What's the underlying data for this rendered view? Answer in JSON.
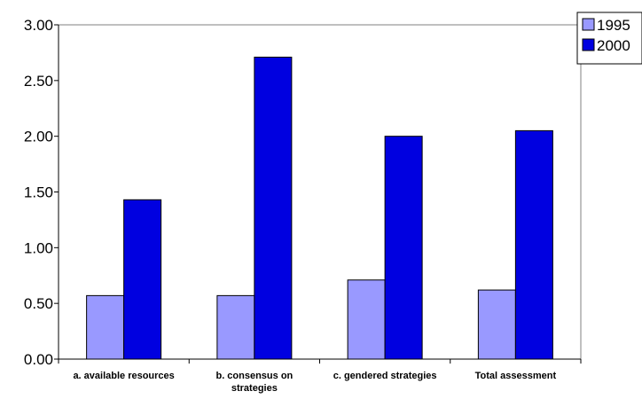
{
  "chart_data": {
    "type": "bar",
    "title": "",
    "xlabel": "",
    "ylabel": "",
    "categories": [
      [
        "a. available resources"
      ],
      [
        "b. consensus on",
        "strategies"
      ],
      [
        "c. gendered strategies"
      ],
      [
        "Total assessment"
      ]
    ],
    "series": [
      {
        "name": "1995",
        "color": "#9999ff",
        "values": [
          0.57,
          0.57,
          0.71,
          0.62
        ]
      },
      {
        "name": "2000",
        "color": "#0000e0",
        "values": [
          1.43,
          2.71,
          2.0,
          2.05
        ]
      }
    ],
    "ylim": [
      0,
      3.0
    ],
    "yticks": [
      "0.00",
      "0.50",
      "1.00",
      "1.50",
      "2.00",
      "2.50",
      "3.00"
    ],
    "grid": false,
    "legend_position": "top-right"
  }
}
